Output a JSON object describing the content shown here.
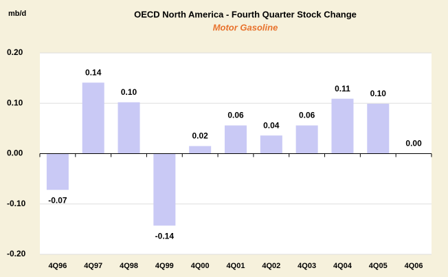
{
  "chart_data": {
    "type": "bar",
    "title": "OECD North America - Fourth Quarter Stock Change",
    "subtitle": "Motor Gasoline",
    "y_axis_label": "mb/d",
    "categories": [
      "4Q96",
      "4Q97",
      "4Q98",
      "4Q99",
      "4Q00",
      "4Q01",
      "4Q02",
      "4Q03",
      "4Q04",
      "4Q05",
      "4Q06"
    ],
    "values": [
      -0.072,
      0.141,
      0.102,
      -0.143,
      0.015,
      0.056,
      0.036,
      0.056,
      0.109,
      0.099,
      0.0
    ],
    "value_labels": [
      "-0.07",
      "0.14",
      "0.10",
      "-0.14",
      "0.02",
      "0.06",
      "0.04",
      "0.06",
      "0.11",
      "0.10",
      "0.00"
    ],
    "color": "#c9c9f5",
    "ylim": [
      -0.2,
      0.2
    ],
    "yticks": [
      {
        "value": -0.2,
        "label": "-0.20"
      },
      {
        "value": -0.1,
        "label": "-0.10"
      },
      {
        "value": 0,
        "label": "0.00"
      },
      {
        "value": 0.1,
        "label": "0.10"
      },
      {
        "value": 0.2,
        "label": "0.20"
      }
    ],
    "grid": true
  }
}
